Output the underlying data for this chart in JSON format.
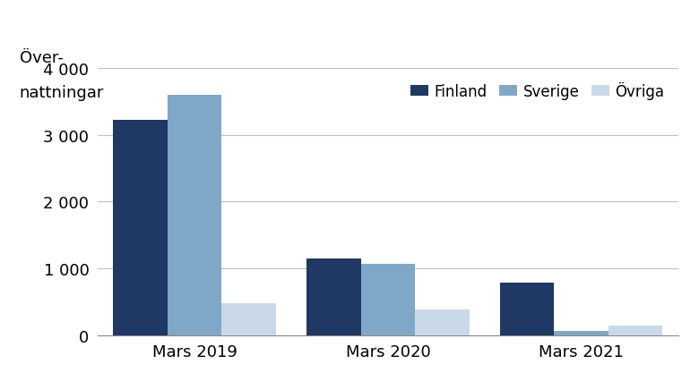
{
  "categories": [
    "Mars 2019",
    "Mars 2020",
    "Mars 2021"
  ],
  "series": [
    {
      "label": "Finland",
      "values": [
        3220,
        1150,
        790
      ],
      "color": "#1f3864"
    },
    {
      "label": "Sverige",
      "values": [
        3600,
        1070,
        70
      ],
      "color": "#7fa8c8"
    },
    {
      "label": "Övriga",
      "values": [
        480,
        390,
        150
      ],
      "color": "#c9d9ea"
    }
  ],
  "ylabel_line1": "Över-",
  "ylabel_line2": "nattningar",
  "ylim": [
    0,
    4000
  ],
  "yticks": [
    0,
    1000,
    2000,
    3000,
    4000
  ],
  "ytick_labels": [
    "0",
    "1 000",
    "2 000",
    "3 000",
    "4 000"
  ],
  "bar_width": 0.28,
  "legend_loc": "upper right",
  "background_color": "#ffffff",
  "label_fontsize": 13,
  "tick_fontsize": 13,
  "legend_fontsize": 12
}
